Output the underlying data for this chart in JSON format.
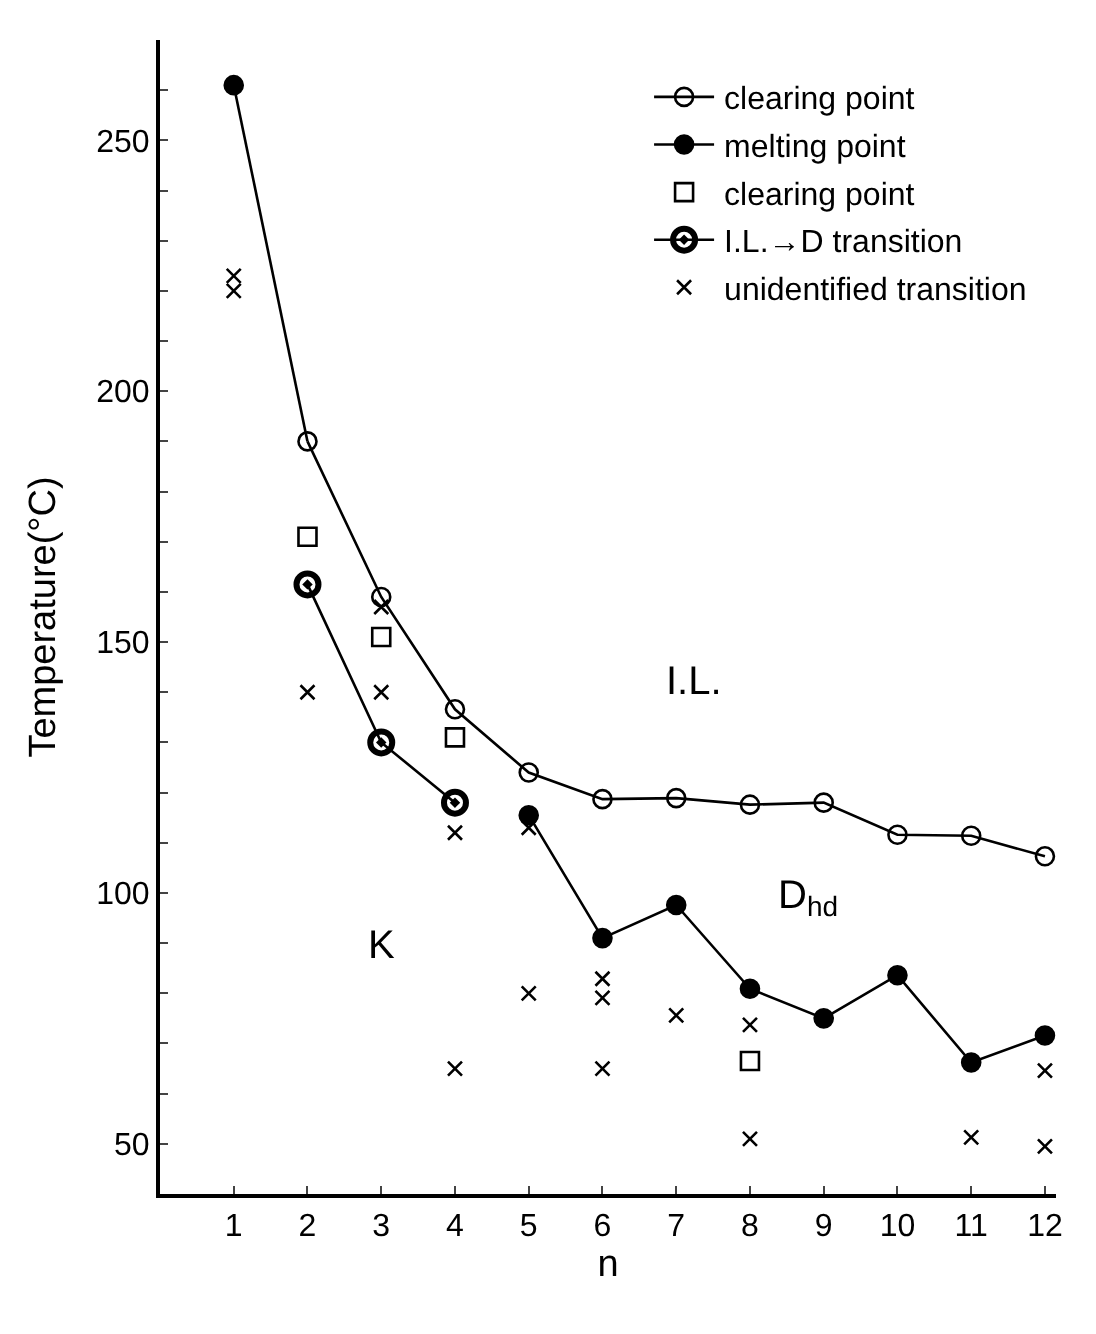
{
  "chart_data": {
    "type": "scatter",
    "xlabel": "n",
    "ylabel": "Temperature(°C)",
    "xlim": [
      0,
      12.15
    ],
    "xticks": [
      1,
      2,
      3,
      4,
      5,
      6,
      7,
      8,
      9,
      10,
      11,
      12
    ],
    "ylim": [
      40,
      270
    ],
    "yticks": [
      {
        "value": 40,
        "label": null
      },
      50,
      {
        "value": 60,
        "label": null
      },
      {
        "value": 70,
        "label": null
      },
      {
        "value": 80,
        "label": null
      },
      {
        "value": 90,
        "label": null
      },
      100,
      {
        "value": 110,
        "label": null
      },
      {
        "value": 120,
        "label": null
      },
      {
        "value": 130,
        "label": null
      },
      {
        "value": 140,
        "label": null
      },
      150,
      {
        "value": 160,
        "label": null
      },
      {
        "value": 170,
        "label": null
      },
      {
        "value": 180,
        "label": null
      },
      {
        "value": 190,
        "label": null
      },
      200,
      {
        "value": 210,
        "label": null
      },
      {
        "value": 220,
        "label": null
      },
      {
        "value": 230,
        "label": null
      },
      {
        "value": 240,
        "label": null
      },
      250,
      {
        "value": 260,
        "label": null
      }
    ],
    "legend": "top right",
    "series": [
      {
        "name": "clearing point",
        "type": "line",
        "marker": "circle",
        "color": "#000000",
        "x": [
          2,
          3,
          4,
          5,
          6,
          7,
          8,
          9,
          10,
          11,
          12
        ],
        "values": [
          190,
          159,
          136.6,
          124,
          118.7,
          118.9,
          117.6,
          118,
          111.6,
          111.4,
          107.3
        ]
      },
      {
        "name": "melting point",
        "type": "line",
        "marker": "circle",
        "color": "#000000",
        "x": [
          5,
          6,
          7,
          8,
          9,
          10,
          11,
          12
        ],
        "values": [
          115.5,
          91,
          97.6,
          80.9,
          75,
          83.6,
          66.2,
          71.6
        ]
      },
      {
        "name": "clearing point",
        "marker": "square",
        "color": "#000000",
        "x": [
          2,
          3,
          4,
          8
        ],
        "values": [
          171,
          151,
          131,
          66.5
        ]
      },
      {
        "name": "I.L.→D transition",
        "type": "line",
        "marker": "circle",
        "color": "#000000",
        "x": [
          2,
          3,
          4
        ],
        "values": [
          161.5,
          130,
          118
        ]
      },
      {
        "name": "unidentified transition",
        "marker": "cross",
        "color": "#000000",
        "x": [
          1,
          1,
          2,
          3,
          3,
          4,
          4,
          5,
          5,
          6,
          6,
          6,
          7,
          8,
          8,
          11,
          12,
          12
        ],
        "values": [
          223,
          220,
          140,
          157,
          140,
          112,
          65,
          113,
          80,
          82.9,
          79.1,
          65,
          75.6,
          73.7,
          51,
          51.3,
          64.6,
          49.5
        ]
      },
      {
        "type": "line",
        "marker": "none",
        "color": "#000000",
        "x": [
          1,
          2
        ],
        "values": [
          261,
          190
        ]
      },
      {
        "marker": "circle",
        "color": "#000000",
        "x": [
          1
        ],
        "values": [
          261
        ]
      }
    ],
    "annotations": [
      "I.L.",
      "K",
      "D$_{hd}$"
    ]
  }
}
